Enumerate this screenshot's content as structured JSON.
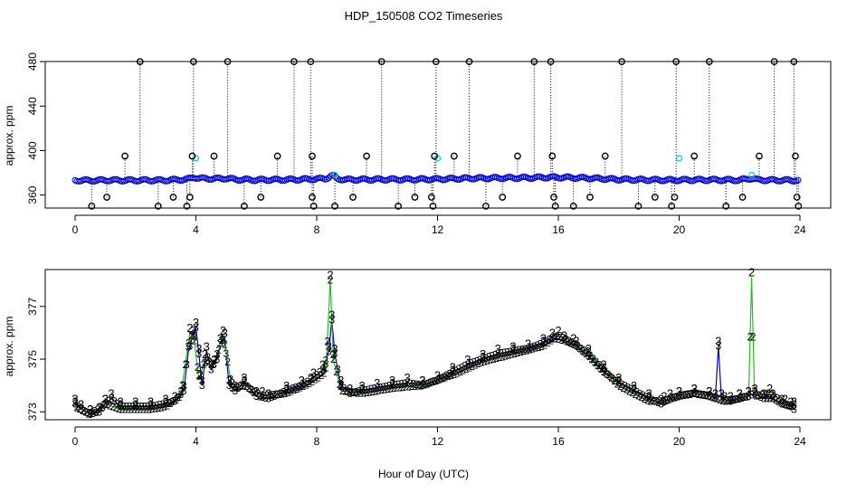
{
  "title": "HDP_150508  CO2 Timeseries",
  "xlabel": "Hour of Day (UTC)",
  "colors": {
    "dark": "#000000",
    "cyan": "#00c8d8",
    "blue": "#0000c8",
    "green": "#22c022"
  },
  "chart_data": [
    {
      "type": "scatter",
      "title": "HDP_150508  CO2 Timeseries",
      "ylabel": "approx. ppm",
      "xlabel": "",
      "xlim": [
        0,
        24
      ],
      "ylim": [
        345,
        485
      ],
      "xticks": [
        0,
        4,
        8,
        12,
        16,
        20,
        24
      ],
      "yticks": [
        360,
        400,
        440,
        480
      ],
      "grid": false,
      "legend": "none",
      "baseline": [
        [
          0,
          373.3
        ],
        [
          0.5,
          373
        ],
        [
          1,
          373.3
        ],
        [
          2,
          373.2
        ],
        [
          3,
          373.3
        ],
        [
          3.7,
          374
        ],
        [
          3.95,
          376
        ],
        [
          4.1,
          375
        ],
        [
          4.6,
          374.6
        ],
        [
          5,
          375
        ],
        [
          5.3,
          374
        ],
        [
          6,
          373.6
        ],
        [
          7,
          373.8
        ],
        [
          7.8,
          374.2
        ],
        [
          8.3,
          374.8
        ],
        [
          8.5,
          377.5
        ],
        [
          8.7,
          374.5
        ],
        [
          9,
          373.8
        ],
        [
          10,
          374
        ],
        [
          11,
          374
        ],
        [
          12,
          374.3
        ],
        [
          13,
          375
        ],
        [
          14,
          375.3
        ],
        [
          15,
          375.5
        ],
        [
          15.8,
          376
        ],
        [
          16.2,
          375.8
        ],
        [
          17,
          375.2
        ],
        [
          18,
          374
        ],
        [
          19,
          373.6
        ],
        [
          19.8,
          373.4
        ],
        [
          20.5,
          373.6
        ],
        [
          21.3,
          373.6
        ],
        [
          22,
          373.4
        ],
        [
          22.4,
          375
        ],
        [
          22.6,
          373.6
        ],
        [
          23,
          373.4
        ],
        [
          23.8,
          373.2
        ]
      ],
      "spikes": [
        {
          "x": 0.55,
          "y": 350
        },
        {
          "x": 1.05,
          "y": 358
        },
        {
          "x": 1.65,
          "y": 395
        },
        {
          "x": 2.15,
          "y": 480
        },
        {
          "x": 2.75,
          "y": 350
        },
        {
          "x": 3.25,
          "y": 358
        },
        {
          "x": 3.7,
          "y": 350
        },
        {
          "x": 3.8,
          "y": 358
        },
        {
          "x": 3.88,
          "y": 395
        },
        {
          "x": 3.92,
          "y": 480
        },
        {
          "x": 4.6,
          "y": 395
        },
        {
          "x": 5.05,
          "y": 480
        },
        {
          "x": 5.6,
          "y": 350
        },
        {
          "x": 6.15,
          "y": 358
        },
        {
          "x": 6.7,
          "y": 395
        },
        {
          "x": 7.25,
          "y": 480
        },
        {
          "x": 7.8,
          "y": 480
        },
        {
          "x": 7.85,
          "y": 358
        },
        {
          "x": 7.9,
          "y": 350
        },
        {
          "x": 7.85,
          "y": 395
        },
        {
          "x": 8.6,
          "y": 350
        },
        {
          "x": 9.2,
          "y": 358
        },
        {
          "x": 9.65,
          "y": 395
        },
        {
          "x": 10.15,
          "y": 480
        },
        {
          "x": 10.7,
          "y": 350
        },
        {
          "x": 11.25,
          "y": 358
        },
        {
          "x": 11.8,
          "y": 358
        },
        {
          "x": 11.9,
          "y": 395
        },
        {
          "x": 11.95,
          "y": 480
        },
        {
          "x": 11.85,
          "y": 350
        },
        {
          "x": 12.55,
          "y": 395
        },
        {
          "x": 13.05,
          "y": 480
        },
        {
          "x": 13.6,
          "y": 350
        },
        {
          "x": 14.15,
          "y": 358
        },
        {
          "x": 14.65,
          "y": 395
        },
        {
          "x": 15.2,
          "y": 480
        },
        {
          "x": 15.75,
          "y": 480
        },
        {
          "x": 15.8,
          "y": 395
        },
        {
          "x": 15.85,
          "y": 358
        },
        {
          "x": 15.9,
          "y": 350
        },
        {
          "x": 16.5,
          "y": 350
        },
        {
          "x": 17.05,
          "y": 358
        },
        {
          "x": 17.55,
          "y": 395
        },
        {
          "x": 18.1,
          "y": 480
        },
        {
          "x": 18.65,
          "y": 350
        },
        {
          "x": 19.2,
          "y": 358
        },
        {
          "x": 19.75,
          "y": 350
        },
        {
          "x": 19.85,
          "y": 358
        },
        {
          "x": 19.9,
          "y": 480
        },
        {
          "x": 20.5,
          "y": 395
        },
        {
          "x": 21,
          "y": 480
        },
        {
          "x": 21.55,
          "y": 350
        },
        {
          "x": 22.1,
          "y": 358
        },
        {
          "x": 22.65,
          "y": 395
        },
        {
          "x": 23.15,
          "y": 480
        },
        {
          "x": 23.8,
          "y": 480
        },
        {
          "x": 23.85,
          "y": 395
        },
        {
          "x": 23.9,
          "y": 358
        },
        {
          "x": 23.95,
          "y": 350
        }
      ],
      "cyan_points": [
        {
          "x": 4.0,
          "y": 393
        },
        {
          "x": 12.0,
          "y": 393
        },
        {
          "x": 20.0,
          "y": 393
        },
        {
          "x": 22.4,
          "y": 378
        },
        {
          "x": 8.6,
          "y": 378
        }
      ]
    },
    {
      "type": "line",
      "title": "",
      "ylabel": "approx. ppm",
      "xlabel": "Hour of Day (UTC)",
      "xlim": [
        0,
        24
      ],
      "ylim": [
        372.7,
        378.4
      ],
      "xticks": [
        0,
        4,
        8,
        12,
        16,
        20,
        24
      ],
      "yticks": [
        373,
        375,
        377
      ],
      "grid": false,
      "legend": "none",
      "marker_labels": [
        "2",
        "3"
      ],
      "series": [
        {
          "marker": "3",
          "color": "blue",
          "points": [
            [
              0,
              373.3
            ],
            [
              0.2,
              373.1
            ],
            [
              0.5,
              372.9
            ],
            [
              0.8,
              373
            ],
            [
              1,
              373.3
            ],
            [
              1.2,
              373.5
            ],
            [
              1.5,
              373.2
            ],
            [
              2,
              373.2
            ],
            [
              2.5,
              373.2
            ],
            [
              3,
              373.3
            ],
            [
              3.3,
              373.4
            ],
            [
              3.6,
              373.8
            ],
            [
              3.75,
              375.3
            ],
            [
              3.9,
              375.9
            ],
            [
              4.0,
              376.2
            ],
            [
              4.1,
              375.2
            ],
            [
              4.2,
              374
            ],
            [
              4.35,
              375.3
            ],
            [
              4.5,
              374.6
            ],
            [
              4.7,
              375
            ],
            [
              4.8,
              375.6
            ],
            [
              4.95,
              375.8
            ],
            [
              5.1,
              374
            ],
            [
              5.3,
              373.8
            ],
            [
              5.6,
              374.1
            ],
            [
              6,
              373.6
            ],
            [
              6.4,
              373.5
            ],
            [
              7,
              373.8
            ],
            [
              7.5,
              374
            ],
            [
              7.9,
              374.3
            ],
            [
              8.2,
              374.6
            ],
            [
              8.4,
              375.3
            ],
            [
              8.5,
              376.5
            ],
            [
              8.6,
              375.2
            ],
            [
              8.8,
              374
            ],
            [
              9.1,
              373.7
            ],
            [
              9.5,
              373.8
            ],
            [
              10,
              373.9
            ],
            [
              10.5,
              374
            ],
            [
              11,
              374.1
            ],
            [
              11.5,
              374
            ],
            [
              12,
              374.2
            ],
            [
              12.5,
              374.5
            ],
            [
              13,
              374.8
            ],
            [
              13.5,
              375
            ],
            [
              14,
              375.2
            ],
            [
              14.5,
              375.3
            ],
            [
              15,
              375.4
            ],
            [
              15.5,
              375.6
            ],
            [
              15.8,
              375.8
            ],
            [
              16.2,
              375.7
            ],
            [
              16.6,
              375.5
            ],
            [
              17,
              375.1
            ],
            [
              17.5,
              374.5
            ],
            [
              18,
              374.1
            ],
            [
              18.5,
              373.8
            ],
            [
              19,
              373.5
            ],
            [
              19.4,
              373.3
            ],
            [
              19.7,
              373.5
            ],
            [
              20,
              373.6
            ],
            [
              20.5,
              373.7
            ],
            [
              21,
              373.6
            ],
            [
              21.2,
              373.5
            ],
            [
              21.3,
              375.5
            ],
            [
              21.4,
              373.5
            ],
            [
              21.7,
              373.4
            ],
            [
              22,
              373.5
            ],
            [
              22.3,
              373.6
            ],
            [
              22.5,
              373.7
            ],
            [
              22.8,
              373.5
            ],
            [
              23.1,
              373.5
            ],
            [
              23.4,
              373.3
            ],
            [
              23.7,
              373.2
            ],
            [
              23.8,
              373.1
            ]
          ]
        },
        {
          "marker": "2",
          "color": "green",
          "points": [
            [
              0,
              373.2
            ],
            [
              0.5,
              372.9
            ],
            [
              1,
              373.3
            ],
            [
              1.5,
              373.1
            ],
            [
              2,
              373.1
            ],
            [
              2.5,
              373.1
            ],
            [
              3,
              373.2
            ],
            [
              3.5,
              373.6
            ],
            [
              3.8,
              376
            ],
            [
              3.95,
              375.7
            ],
            [
              4.1,
              374.2
            ],
            [
              4.3,
              375
            ],
            [
              4.6,
              374.8
            ],
            [
              4.9,
              375.9
            ],
            [
              5.2,
              373.9
            ],
            [
              5.6,
              374
            ],
            [
              6.2,
              373.6
            ],
            [
              7,
              373.7
            ],
            [
              7.8,
              374.1
            ],
            [
              8.3,
              374.5
            ],
            [
              8.45,
              378
            ],
            [
              8.55,
              375
            ],
            [
              8.8,
              373.8
            ],
            [
              9.5,
              373.7
            ],
            [
              10.5,
              373.9
            ],
            [
              11.5,
              374
            ],
            [
              12.5,
              374.4
            ],
            [
              13.5,
              374.9
            ],
            [
              14.5,
              375.2
            ],
            [
              15.5,
              375.5
            ],
            [
              16,
              375.9
            ],
            [
              16.5,
              375.6
            ],
            [
              17,
              375.2
            ],
            [
              17.5,
              374.6
            ],
            [
              18,
              374
            ],
            [
              18.5,
              373.7
            ],
            [
              19,
              373.4
            ],
            [
              19.5,
              373.4
            ],
            [
              20,
              373.6
            ],
            [
              20.5,
              373.7
            ],
            [
              21,
              373.6
            ],
            [
              21.5,
              373.4
            ],
            [
              22,
              373.5
            ],
            [
              22.3,
              373.6
            ],
            [
              22.4,
              378.1
            ],
            [
              22.5,
              373.6
            ],
            [
              23,
              373.7
            ],
            [
              23.5,
              373.3
            ],
            [
              23.8,
              373.2
            ]
          ]
        }
      ]
    }
  ]
}
